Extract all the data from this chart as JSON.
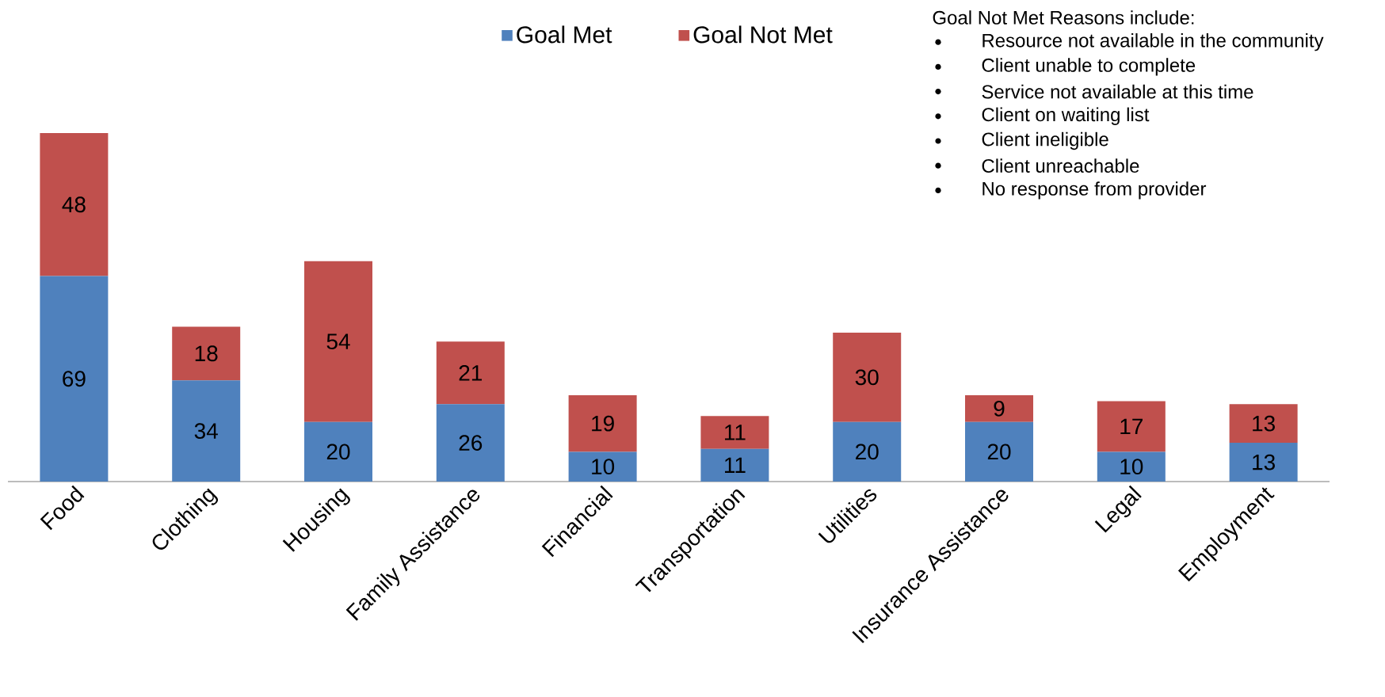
{
  "chart_data": {
    "type": "bar",
    "stacked": true,
    "data_labels": true,
    "legend": "top",
    "categories": [
      "Food",
      "Clothing",
      "Housing",
      "Family Assistance",
      "Financial",
      "Transportation",
      "Utilities",
      "Insurance Assistance",
      "Legal",
      "Employment"
    ],
    "series": [
      {
        "name": "Goal Met",
        "color": "#4f81bd",
        "values": [
          69,
          34,
          20,
          26,
          10,
          11,
          20,
          20,
          10,
          13
        ]
      },
      {
        "name": "Goal Not Met",
        "color": "#c0504d",
        "values": [
          48,
          18,
          54,
          21,
          19,
          11,
          30,
          9,
          17,
          13
        ]
      }
    ],
    "annotations": [
      "Goal Not Met Reasons include:",
      "Resource not available in the community",
      "Client unable to complete",
      "Service not available at this time",
      "Client on waiting list",
      "Client ineligible",
      "Client unreachable",
      "No response from provider"
    ]
  }
}
